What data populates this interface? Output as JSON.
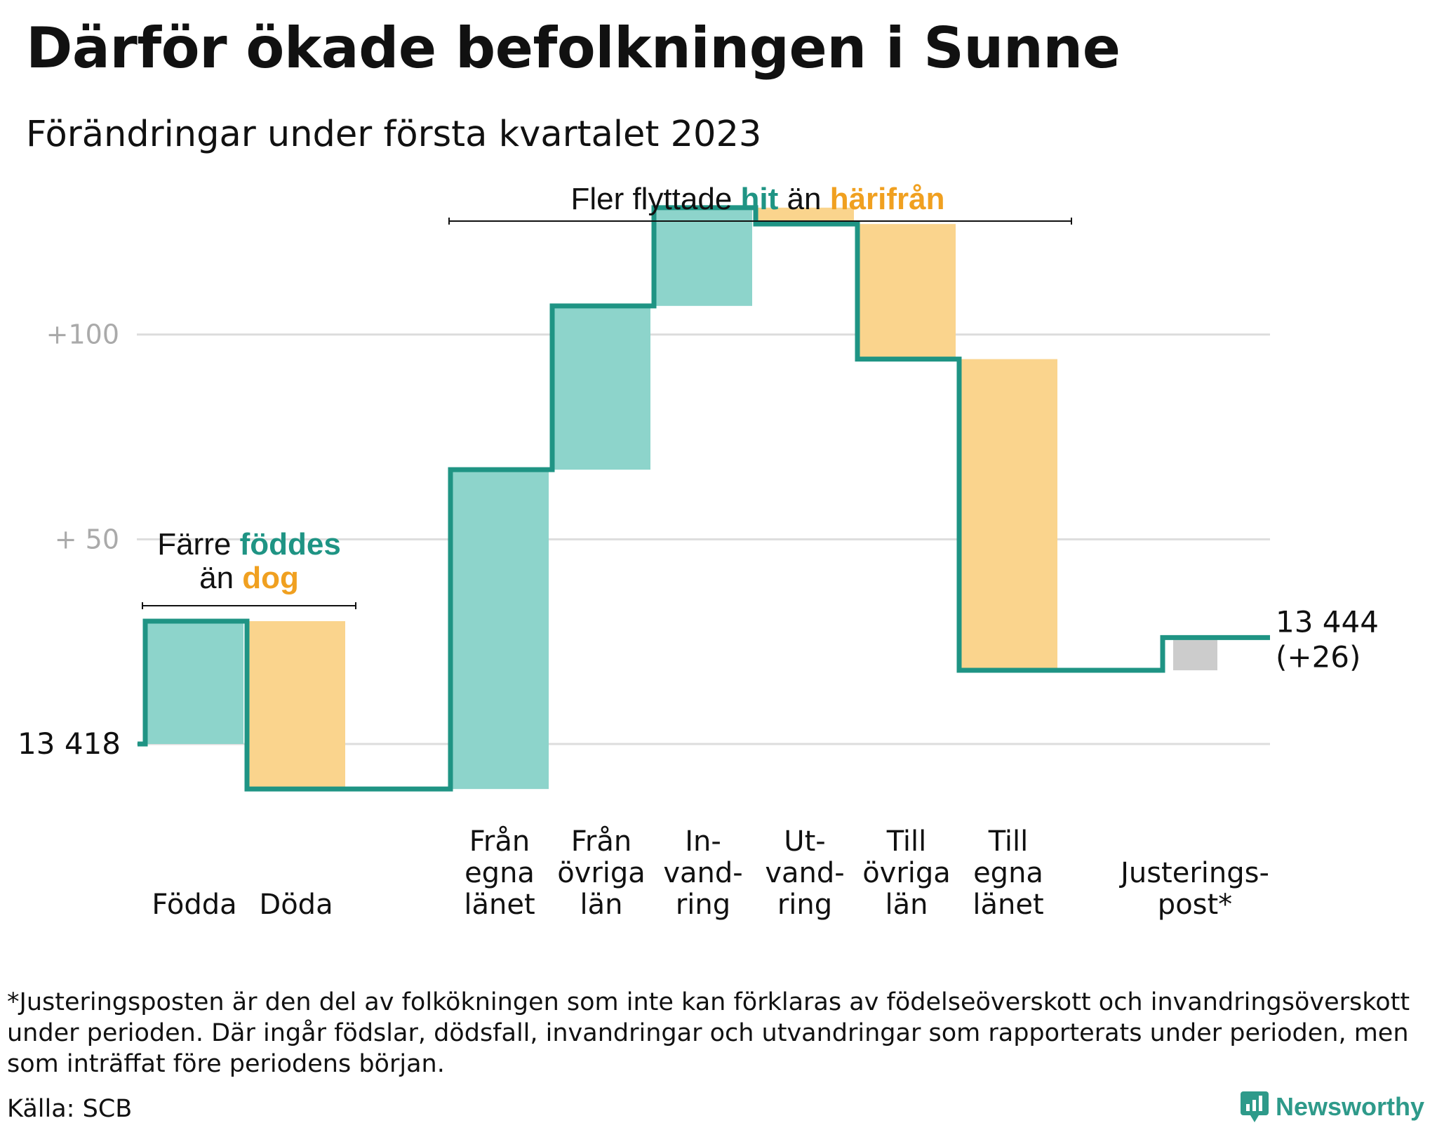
{
  "title": "Därför ökade befolkningen i Sunne",
  "subtitle": "Förändringar under första kvartalet 2023",
  "footnote": "*Justeringsposten är den del av folkökningen som inte kan förklaras av födelseöverskott och invandringsöverskott under perioden. Där ingår födslar, dödsfall, invandringar och utvandringar som rapporterats under perioden, men som inträffat före periodens början.",
  "source": "Källa: SCB",
  "brand": "Newsworthy",
  "colors": {
    "increase": "#8dd4cb",
    "decrease": "#fad48d",
    "adjustment": "#cccccc",
    "line": "#1f9484",
    "teal_text": "#1f9484",
    "orange_text": "#f0a020",
    "grid": "#dddddd"
  },
  "chart_data": {
    "type": "waterfall",
    "start_label": "13 418",
    "end_label_value": "13 444",
    "end_label_change": "(+26)",
    "y_ticks": [
      {
        "value": 50,
        "label": "+ 50"
      },
      {
        "value": 100,
        "label": "+100"
      }
    ],
    "ylim": [
      -12,
      132
    ],
    "start_value": 0,
    "steps": [
      {
        "label": [
          "Födda"
        ],
        "value": 30,
        "kind": "increase"
      },
      {
        "label": [
          "Döda"
        ],
        "value": -41,
        "kind": "decrease"
      },
      {
        "label": [
          "Från",
          "egna",
          "länet"
        ],
        "value": 78,
        "kind": "increase"
      },
      {
        "label": [
          "Från",
          "övriga",
          "län"
        ],
        "value": 40,
        "kind": "increase"
      },
      {
        "label": [
          "In-",
          "vand-",
          "ring"
        ],
        "value": 24,
        "kind": "increase"
      },
      {
        "label": [
          "Ut-",
          "vand-",
          "ring"
        ],
        "value": -4,
        "kind": "decrease"
      },
      {
        "label": [
          "Till",
          "övriga",
          "län"
        ],
        "value": -33,
        "kind": "decrease"
      },
      {
        "label": [
          "Till",
          "egna",
          "länet"
        ],
        "value": -76,
        "kind": "decrease"
      },
      {
        "label": [
          "Justerings-",
          "post*"
        ],
        "value": 8,
        "kind": "adjustment"
      }
    ],
    "annotations": [
      {
        "lines": [
          [
            {
              "text": "Färre ",
              "style": "plain"
            },
            {
              "text": "föddes",
              "style": "teal"
            }
          ],
          [
            {
              "text": "än ",
              "style": "plain"
            },
            {
              "text": "dog",
              "style": "orange"
            }
          ]
        ]
      },
      {
        "lines": [
          [
            {
              "text": "Fler flyttade ",
              "style": "plain"
            },
            {
              "text": "hit",
              "style": "teal"
            },
            {
              "text": " än ",
              "style": "plain"
            },
            {
              "text": "härifrån",
              "style": "orange"
            }
          ]
        ]
      }
    ]
  }
}
